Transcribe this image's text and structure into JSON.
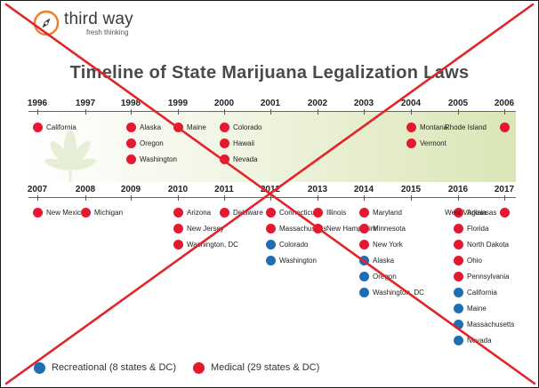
{
  "brand": {
    "name": "third way",
    "tagline": "fresh thinking"
  },
  "title": "Timeline of State Marijuana Legalization Laws",
  "colors": {
    "medical": "#e31a2f",
    "recreational": "#1f6db3",
    "cross": "#e2232a",
    "band_start": "#ffffff",
    "band_end": "#d9e6b6"
  },
  "icons": [
    "third-way-logo-icon",
    "cannabis-leaf-icon",
    "cross-out-mark-icon"
  ],
  "top_row": {
    "years": [
      "1996",
      "1997",
      "1998",
      "1999",
      "2000",
      "2001",
      "2002",
      "2003",
      "2004",
      "2005",
      "2006"
    ],
    "entries": [
      {
        "year": "1996",
        "states": [
          {
            "name": "California",
            "type": "medical"
          }
        ]
      },
      {
        "year": "1998",
        "states": [
          {
            "name": "Alaska",
            "type": "medical"
          },
          {
            "name": "Oregon",
            "type": "medical"
          },
          {
            "name": "Washington",
            "type": "medical"
          }
        ]
      },
      {
        "year": "1999",
        "states": [
          {
            "name": "Maine",
            "type": "medical"
          }
        ]
      },
      {
        "year": "2000",
        "states": [
          {
            "name": "Colorado",
            "type": "medical"
          },
          {
            "name": "Hawaii",
            "type": "medical"
          },
          {
            "name": "Nevada",
            "type": "medical"
          }
        ]
      },
      {
        "year": "2004",
        "states": [
          {
            "name": "Montana",
            "type": "medical"
          },
          {
            "name": "Vermont",
            "type": "medical"
          }
        ]
      },
      {
        "year": "2006",
        "states": [
          {
            "name": "Rhode Island",
            "type": "medical"
          }
        ]
      }
    ]
  },
  "bottom_row": {
    "years": [
      "2007",
      "2008",
      "2009",
      "2010",
      "2011",
      "2012",
      "2013",
      "2014",
      "2015",
      "2016",
      "2017"
    ],
    "entries": [
      {
        "year": "2007",
        "states": [
          {
            "name": "New Mexico",
            "type": "medical"
          }
        ]
      },
      {
        "year": "2008",
        "states": [
          {
            "name": "Michigan",
            "type": "medical"
          }
        ]
      },
      {
        "year": "2010",
        "states": [
          {
            "name": "Arizona",
            "type": "medical"
          },
          {
            "name": "New Jersey",
            "type": "medical"
          },
          {
            "name": "Washington, DC",
            "type": "medical"
          }
        ]
      },
      {
        "year": "2011",
        "states": [
          {
            "name": "Delaware",
            "type": "medical"
          }
        ]
      },
      {
        "year": "2012",
        "states": [
          {
            "name": "Connecticut",
            "type": "medical"
          },
          {
            "name": "Massachusetts",
            "type": "medical"
          },
          {
            "name": "Colorado",
            "type": "recreational"
          },
          {
            "name": "Washington",
            "type": "recreational"
          }
        ]
      },
      {
        "year": "2013",
        "states": [
          {
            "name": "Illinois",
            "type": "medical"
          },
          {
            "name": "New Hampshire",
            "type": "medical"
          }
        ]
      },
      {
        "year": "2014",
        "states": [
          {
            "name": "Maryland",
            "type": "medical"
          },
          {
            "name": "Minnesota",
            "type": "medical"
          },
          {
            "name": "New York",
            "type": "medical"
          },
          {
            "name": "Alaska",
            "type": "recreational"
          },
          {
            "name": "Oregon",
            "type": "recreational"
          },
          {
            "name": "Washington, DC",
            "type": "recreational"
          }
        ]
      },
      {
        "year": "2016",
        "states": [
          {
            "name": "Arkansas",
            "type": "medical"
          },
          {
            "name": "Florida",
            "type": "medical"
          },
          {
            "name": "North Dakota",
            "type": "medical"
          },
          {
            "name": "Ohio",
            "type": "medical"
          },
          {
            "name": "Pennsylvania",
            "type": "medical"
          },
          {
            "name": "California",
            "type": "recreational"
          },
          {
            "name": "Maine",
            "type": "recreational"
          },
          {
            "name": "Massachusetts",
            "type": "recreational"
          },
          {
            "name": "Nevada",
            "type": "recreational"
          }
        ]
      },
      {
        "year": "2017",
        "states": [
          {
            "name": "West Virginia",
            "type": "medical"
          }
        ]
      }
    ]
  },
  "legend": [
    {
      "label": "Recreational (8 states & DC)",
      "type": "recreational"
    },
    {
      "label": "Medical (29 states & DC)",
      "type": "medical"
    }
  ]
}
